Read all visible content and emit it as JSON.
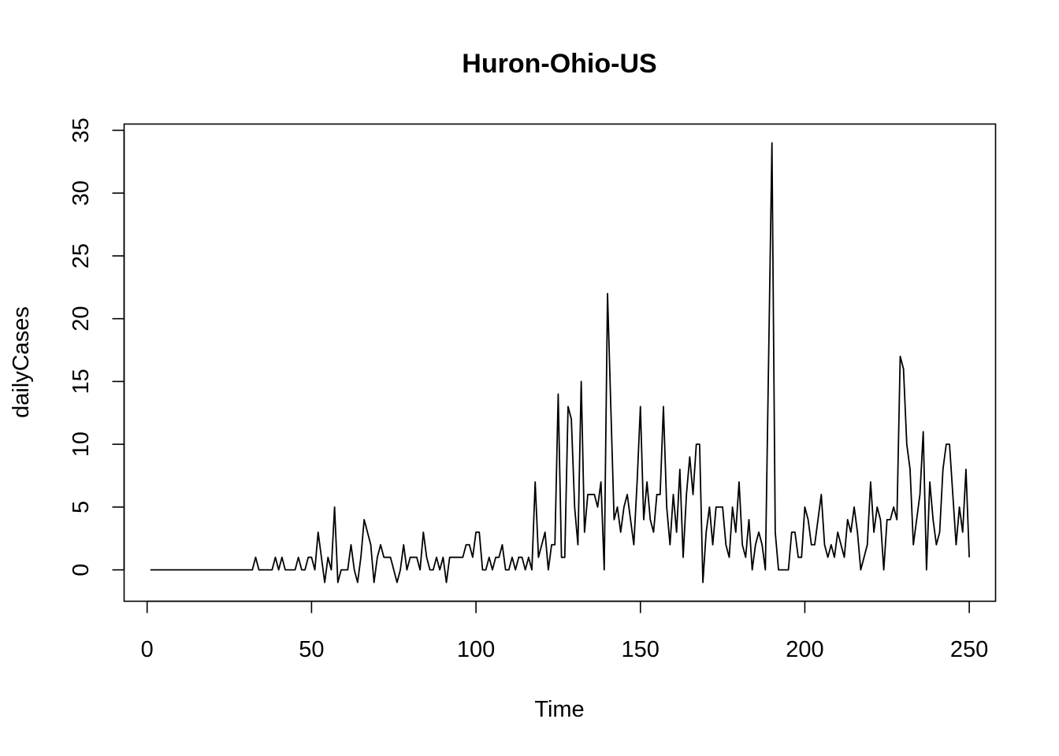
{
  "chart_data": {
    "type": "line",
    "title": "Huron-Ohio-US",
    "xlabel": "Time",
    "ylabel": "dailyCases",
    "xlim": [
      -7,
      258
    ],
    "ylim": [
      -2.5,
      35.5
    ],
    "xticks": [
      0,
      50,
      100,
      150,
      200,
      250
    ],
    "yticks": [
      0,
      5,
      10,
      15,
      20,
      25,
      30,
      35
    ],
    "grid": false,
    "legend": "none",
    "series": [
      {
        "values": [
          0,
          0,
          0,
          0,
          0,
          0,
          0,
          0,
          0,
          0,
          0,
          0,
          0,
          0,
          0,
          0,
          0,
          0,
          0,
          0,
          0,
          0,
          0,
          0,
          0,
          0,
          0,
          0,
          0,
          0,
          0,
          0,
          1,
          0,
          0,
          0,
          0,
          0,
          1,
          0,
          1,
          0,
          0,
          0,
          0,
          1,
          0,
          0,
          1,
          1,
          0,
          3,
          1,
          -1,
          1,
          0,
          5,
          -1,
          0,
          0,
          0,
          2,
          0,
          -1,
          1,
          4,
          3,
          2,
          -1,
          1,
          2,
          1,
          1,
          1,
          0,
          -1,
          0,
          2,
          0,
          1,
          1,
          1,
          0,
          3,
          1,
          0,
          0,
          1,
          0,
          1,
          -1,
          1,
          1,
          1,
          1,
          1,
          2,
          2,
          1,
          3,
          3,
          0,
          0,
          1,
          0,
          1,
          1,
          2,
          0,
          0,
          1,
          0,
          1,
          1,
          0,
          1,
          0,
          7,
          1,
          2,
          3,
          0,
          2,
          2,
          14,
          1,
          1,
          13,
          12,
          5,
          2,
          15,
          3,
          6,
          6,
          6,
          5,
          7,
          0,
          22,
          13,
          4,
          5,
          3,
          5,
          6,
          4,
          2,
          7,
          13,
          4,
          7,
          4,
          3,
          6,
          6,
          13,
          5,
          2,
          6,
          3,
          8,
          1,
          6,
          9,
          6,
          10,
          10,
          -1,
          3,
          5,
          2,
          5,
          5,
          5,
          2,
          1,
          5,
          3,
          7,
          2,
          1,
          4,
          0,
          2,
          3,
          2,
          0,
          17,
          34,
          3,
          0,
          0,
          0,
          0,
          3,
          3,
          1,
          1,
          5,
          4,
          2,
          2,
          4,
          6,
          2,
          1,
          2,
          1,
          3,
          2,
          1,
          4,
          3,
          5,
          3,
          0,
          1,
          2,
          7,
          3,
          5,
          4,
          0,
          4,
          4,
          5,
          4,
          17,
          16,
          10,
          8,
          2,
          4,
          6,
          11,
          0,
          7,
          4,
          2,
          3,
          8,
          10,
          10,
          6,
          2,
          5,
          3,
          8,
          1
        ]
      }
    ]
  }
}
